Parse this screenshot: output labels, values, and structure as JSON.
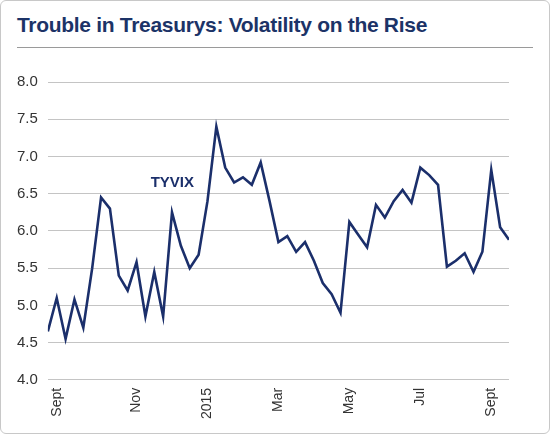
{
  "chart_data": {
    "type": "line",
    "title": "Trouble in Treasurys: Volatility on the Rise",
    "annotation": "TYVIX",
    "categories": [
      null,
      "Sept",
      null,
      null,
      null,
      null,
      null,
      null,
      null,
      null,
      "Nov",
      null,
      null,
      null,
      null,
      null,
      null,
      null,
      "2015",
      null,
      null,
      null,
      null,
      null,
      null,
      null,
      "Mar",
      null,
      null,
      null,
      null,
      null,
      null,
      null,
      "May",
      null,
      null,
      null,
      null,
      null,
      null,
      null,
      "Jul",
      null,
      null,
      null,
      null,
      null,
      null,
      null,
      "Sept",
      null,
      null
    ],
    "values": [
      4.65,
      5.1,
      4.55,
      5.08,
      4.7,
      5.5,
      6.45,
      6.3,
      5.4,
      5.2,
      5.58,
      4.85,
      5.45,
      4.85,
      6.25,
      5.8,
      5.5,
      5.68,
      6.4,
      7.4,
      6.85,
      6.65,
      6.72,
      6.62,
      6.92,
      6.4,
      5.85,
      5.93,
      5.72,
      5.85,
      5.6,
      5.3,
      5.15,
      4.9,
      6.12,
      5.95,
      5.78,
      6.35,
      6.18,
      6.4,
      6.55,
      6.38,
      6.85,
      6.75,
      6.62,
      5.52,
      5.6,
      5.7,
      5.45,
      5.72,
      6.82,
      6.05,
      5.88
    ],
    "color": "#1b2f6b",
    "ylim": [
      4,
      8
    ],
    "yticks": [
      {
        "value": 4,
        "label": "4.0"
      },
      4.5,
      {
        "value": 5,
        "label": "5.0"
      },
      5.5,
      {
        "value": 6,
        "label": "6.0"
      },
      6.5,
      {
        "value": 7,
        "label": "7.0"
      },
      7.5,
      {
        "value": 8,
        "label": "8.0"
      }
    ],
    "grid": true
  }
}
